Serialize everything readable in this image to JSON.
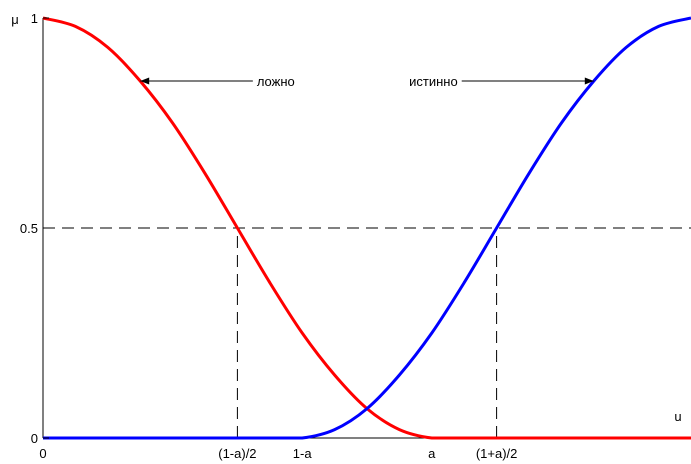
{
  "chart_data": {
    "type": "line",
    "title": "",
    "xlabel": "u",
    "ylabel": "μ",
    "xlim": [
      0,
      1
    ],
    "ylim": [
      0,
      1
    ],
    "grid": false,
    "legend": "none",
    "params": {
      "a": 0.6
    },
    "x_ticks": [
      {
        "x": 0,
        "label": "0"
      },
      {
        "x": 0.3,
        "label": "(1-a)/2"
      },
      {
        "x": 0.4,
        "label": "1-a"
      },
      {
        "x": 0.6,
        "label": "a"
      },
      {
        "x": 0.7,
        "label": "(1+a)/2"
      }
    ],
    "y_ticks": [
      {
        "y": 0,
        "label": "0"
      },
      {
        "y": 0.5,
        "label": "0.5"
      },
      {
        "y": 1,
        "label": "1"
      }
    ],
    "series": [
      {
        "key": "false",
        "color": "#ff0000",
        "x": [
          0,
          0.05,
          0.1,
          0.15,
          0.2,
          0.25,
          0.3,
          0.35,
          0.4,
          0.45,
          0.5,
          0.55,
          0.6,
          0.65,
          0.7,
          0.75,
          0.8,
          0.85,
          0.9,
          0.95,
          1
        ],
        "values": [
          1,
          0.98,
          0.93,
          0.85,
          0.75,
          0.63,
          0.5,
          0.37,
          0.25,
          0.15,
          0.07,
          0.02,
          0,
          0,
          0,
          0,
          0,
          0,
          0,
          0,
          0
        ]
      },
      {
        "key": "true",
        "color": "#0000ff",
        "x": [
          0,
          0.05,
          0.1,
          0.15,
          0.2,
          0.25,
          0.3,
          0.35,
          0.4,
          0.45,
          0.5,
          0.55,
          0.6,
          0.65,
          0.7,
          0.75,
          0.8,
          0.85,
          0.9,
          0.95,
          1
        ],
        "values": [
          0,
          0,
          0,
          0,
          0,
          0,
          0,
          0,
          0,
          0.02,
          0.07,
          0.15,
          0.25,
          0.37,
          0.5,
          0.63,
          0.75,
          0.85,
          0.93,
          0.98,
          1
        ]
      }
    ],
    "reference_lines": [
      {
        "axis": "y",
        "value": 0.5
      },
      {
        "axis": "x",
        "value": 0.3,
        "from": 0,
        "to": 0.5
      },
      {
        "axis": "x",
        "value": 0.7,
        "from": 0,
        "to": 0.5
      }
    ],
    "annotations": [
      {
        "text": "ложно",
        "series": "false",
        "point": [
          0.15,
          0.85
        ],
        "text_pos": [
          0.33,
          0.85
        ]
      },
      {
        "text": "истинно",
        "series": "true",
        "point": [
          0.85,
          0.85
        ],
        "text_pos": [
          0.64,
          0.85
        ]
      }
    ]
  }
}
